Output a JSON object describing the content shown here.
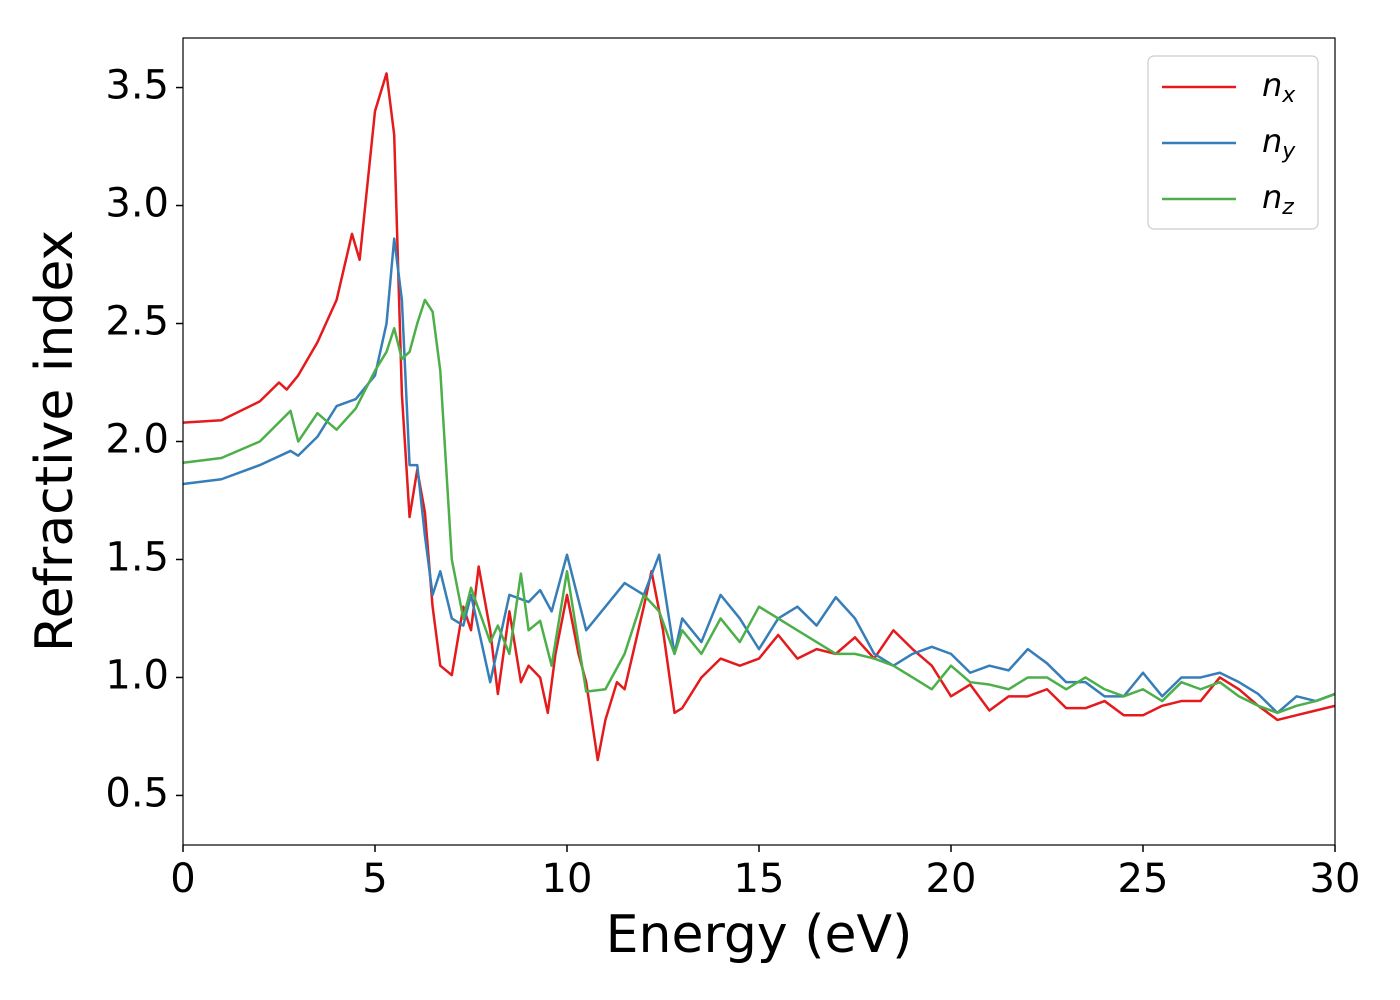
{
  "chart_data": {
    "type": "line",
    "xlabel": "Energy (eV)",
    "ylabel": "Refractive index",
    "xlim": [
      0,
      30
    ],
    "xticks": [
      0,
      5,
      10,
      15,
      20,
      25,
      30
    ],
    "ylim": [
      0.29,
      3.71
    ],
    "yticks": [
      {
        "value": 0.5,
        "label": "0.5"
      },
      {
        "value": 1.0,
        "label": "1.0"
      },
      {
        "value": 1.5,
        "label": "1.5"
      },
      {
        "value": 2.0,
        "label": "2.0"
      },
      {
        "value": 2.5,
        "label": "2.5"
      },
      {
        "value": 3.0,
        "label": "3.0"
      },
      {
        "value": 3.5,
        "label": "3.5"
      }
    ],
    "grid": false,
    "legend": "upper right",
    "series": [
      {
        "name": "nx",
        "color": "#e41a1c",
        "x": [
          0,
          1,
          2,
          2.5,
          2.7,
          3,
          3.5,
          4,
          4.4,
          4.6,
          5,
          5.3,
          5.5,
          5.7,
          5.9,
          6.1,
          6.3,
          6.5,
          6.7,
          7,
          7.3,
          7.5,
          7.7,
          8,
          8.2,
          8.5,
          8.8,
          9,
          9.3,
          9.5,
          9.7,
          10,
          10.3,
          10.5,
          10.8,
          11,
          11.3,
          11.5,
          12,
          12.2,
          12.5,
          12.8,
          13,
          13.5,
          14,
          14.5,
          15,
          15.5,
          16,
          16.5,
          17,
          17.5,
          18,
          18.5,
          19,
          19.5,
          20,
          20.5,
          21,
          21.5,
          22,
          22.5,
          23,
          23.5,
          24,
          24.5,
          25,
          25.5,
          26,
          26.5,
          27,
          27.5,
          28,
          28.5,
          29,
          29.5,
          30
        ],
        "values": [
          2.08,
          2.09,
          2.17,
          2.25,
          2.22,
          2.28,
          2.42,
          2.6,
          2.88,
          2.77,
          3.4,
          3.56,
          3.3,
          2.2,
          1.68,
          1.88,
          1.7,
          1.3,
          1.05,
          1.01,
          1.3,
          1.2,
          1.47,
          1.2,
          0.93,
          1.28,
          0.98,
          1.05,
          1.0,
          0.85,
          1.1,
          1.35,
          1.1,
          0.98,
          0.65,
          0.82,
          0.98,
          0.95,
          1.3,
          1.45,
          1.2,
          0.85,
          0.87,
          1.0,
          1.08,
          1.05,
          1.08,
          1.18,
          1.08,
          1.12,
          1.1,
          1.17,
          1.08,
          1.2,
          1.12,
          1.05,
          0.92,
          0.97,
          0.86,
          0.92,
          0.92,
          0.95,
          0.87,
          0.87,
          0.9,
          0.84,
          0.84,
          0.88,
          0.9,
          0.9,
          1.0,
          0.95,
          0.88,
          0.82,
          0.84,
          0.86,
          0.88
        ]
      },
      {
        "name": "ny",
        "color": "#377eb8",
        "x": [
          0,
          1,
          2,
          2.8,
          3,
          3.5,
          4,
          4.5,
          5,
          5.3,
          5.5,
          5.7,
          5.9,
          6.1,
          6.3,
          6.5,
          6.7,
          7,
          7.3,
          7.5,
          8,
          8.5,
          9,
          9.3,
          9.6,
          10,
          10.5,
          11,
          11.5,
          12,
          12.4,
          12.8,
          13,
          13.5,
          14,
          14.5,
          15,
          15.5,
          16,
          16.5,
          17,
          17.5,
          18,
          18.5,
          19,
          19.5,
          20,
          20.5,
          21,
          21.5,
          22,
          22.5,
          23,
          23.5,
          24,
          24.5,
          25,
          25.5,
          26,
          26.5,
          27,
          27.5,
          28,
          28.5,
          29,
          29.5,
          30
        ],
        "values": [
          1.82,
          1.84,
          1.9,
          1.96,
          1.94,
          2.02,
          2.15,
          2.18,
          2.28,
          2.5,
          2.86,
          2.6,
          1.9,
          1.9,
          1.6,
          1.35,
          1.45,
          1.25,
          1.22,
          1.35,
          0.98,
          1.35,
          1.32,
          1.37,
          1.28,
          1.52,
          1.2,
          1.3,
          1.4,
          1.35,
          1.52,
          1.1,
          1.25,
          1.15,
          1.35,
          1.25,
          1.12,
          1.25,
          1.3,
          1.22,
          1.34,
          1.25,
          1.1,
          1.05,
          1.1,
          1.13,
          1.1,
          1.02,
          1.05,
          1.03,
          1.12,
          1.06,
          0.98,
          0.98,
          0.92,
          0.92,
          1.02,
          0.92,
          1.0,
          1.0,
          1.02,
          0.98,
          0.93,
          0.85,
          0.92,
          0.9,
          0.93
        ]
      },
      {
        "name": "nz",
        "color": "#4daf4a",
        "x": [
          0,
          1,
          2,
          2.8,
          3,
          3.5,
          4,
          4.5,
          5,
          5.3,
          5.5,
          5.7,
          5.9,
          6.1,
          6.3,
          6.5,
          6.7,
          7,
          7.3,
          7.5,
          8,
          8.2,
          8.5,
          8.8,
          9,
          9.3,
          9.6,
          10,
          10.5,
          11,
          11.5,
          12,
          12.4,
          12.8,
          13,
          13.5,
          14,
          14.5,
          15,
          15.5,
          16,
          16.5,
          17,
          17.5,
          18,
          18.5,
          19,
          19.5,
          20,
          20.5,
          21,
          21.5,
          22,
          22.5,
          23,
          23.5,
          24,
          24.5,
          25,
          25.5,
          26,
          26.5,
          27,
          27.5,
          28,
          28.5,
          29,
          29.5,
          30
        ],
        "values": [
          1.91,
          1.93,
          2.0,
          2.13,
          2.0,
          2.12,
          2.05,
          2.14,
          2.3,
          2.38,
          2.48,
          2.35,
          2.38,
          2.5,
          2.6,
          2.55,
          2.3,
          1.5,
          1.25,
          1.38,
          1.15,
          1.22,
          1.1,
          1.44,
          1.2,
          1.24,
          1.05,
          1.45,
          0.94,
          0.95,
          1.1,
          1.35,
          1.28,
          1.1,
          1.2,
          1.1,
          1.25,
          1.15,
          1.3,
          1.25,
          1.2,
          1.15,
          1.1,
          1.1,
          1.08,
          1.05,
          1.0,
          0.95,
          1.05,
          0.98,
          0.97,
          0.95,
          1.0,
          1.0,
          0.95,
          1.0,
          0.95,
          0.92,
          0.95,
          0.9,
          0.98,
          0.95,
          0.98,
          0.92,
          0.88,
          0.85,
          0.88,
          0.9,
          0.93
        ]
      }
    ]
  }
}
